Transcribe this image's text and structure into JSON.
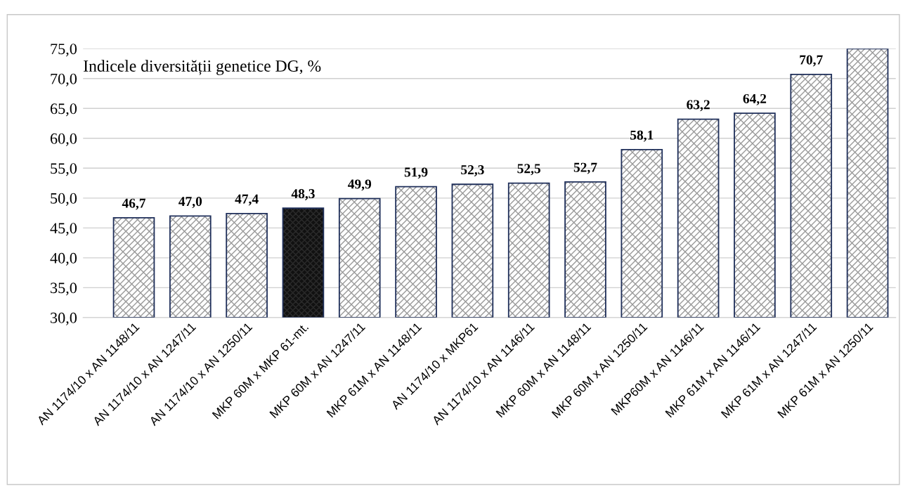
{
  "chart_data": {
    "type": "bar",
    "annotations": [
      "Indicele diversității genetice DG, %"
    ],
    "categories": [
      "AN 1174/10 x AN 1148/11",
      "AN 1174/10 x AN 1247/11",
      "AN 1174/10 x AN 1250/11",
      "MKP 60M x MKP 61-mt.",
      "MKP 60M x AN 1247/11",
      "MKP 61M x AN 1148/11",
      "AN 1174/10 x MKP61",
      "AN 1174/10 x AN 1146/11",
      "MKP 60M x AN 1148/11",
      "MKP 60M x AN 1250/11",
      "MKP60M x AN 1146/11",
      "MKP 61M x AN 1146/11",
      "MKP 61M x AN 1247/11",
      "MKP 61M x AN 1250/11"
    ],
    "values": [
      46.7,
      47.0,
      47.4,
      48.3,
      49.9,
      51.9,
      52.3,
      52.5,
      52.7,
      58.1,
      63.2,
      64.2,
      70.7,
      75.0
    ],
    "value_labels": [
      "46,7",
      "47,0",
      "47,4",
      "48,3",
      "49,9",
      "51,9",
      "52,3",
      "52,5",
      "52,7",
      "58,1",
      "63,2",
      "64,2",
      "70,7",
      null
    ],
    "colors": [
      "#9a9a9a",
      "#9a9a9a",
      "#9a9a9a",
      "#2a2a2a",
      "#9a9a9a",
      "#9a9a9a",
      "#9a9a9a",
      "#9a9a9a",
      "#9a9a9a",
      "#9a9a9a",
      "#9a9a9a",
      "#9a9a9a",
      "#9a9a9a",
      "#9a9a9a"
    ],
    "ylim": [
      30.0,
      75.0
    ],
    "yticks": [
      {
        "value": 30,
        "label": "30,0"
      },
      {
        "value": 35,
        "label": "35,0"
      },
      {
        "value": 40,
        "label": "40,0"
      },
      {
        "value": 45,
        "label": "45,0"
      },
      {
        "value": 50,
        "label": "50,0"
      },
      {
        "value": 55,
        "label": "55,0"
      },
      {
        "value": 60,
        "label": "60,0"
      },
      {
        "value": 65,
        "label": "65,0"
      },
      {
        "value": 70,
        "label": "70,0"
      },
      {
        "value": 75,
        "label": "75,0"
      }
    ],
    "grid": "y"
  }
}
